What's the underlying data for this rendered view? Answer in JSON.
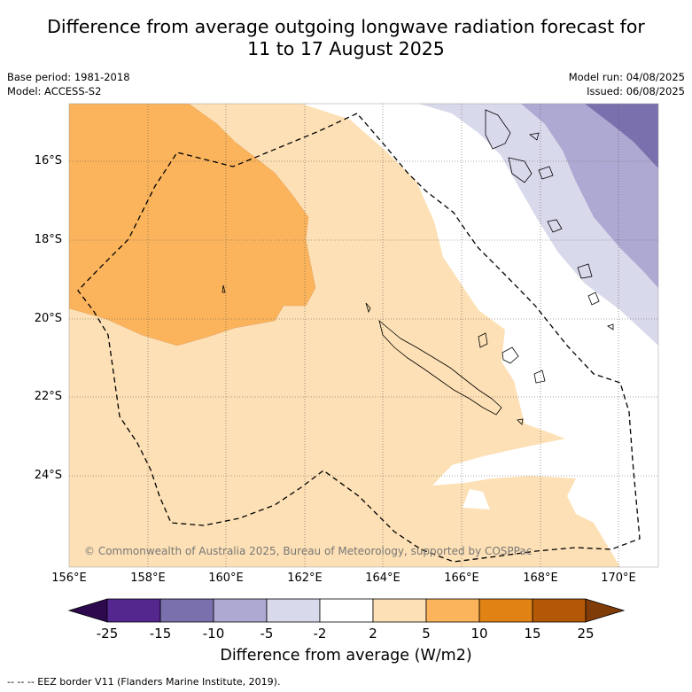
{
  "title_line1": "Difference from average outgoing longwave radiation forecast for",
  "title_line2": "11 to 17 August 2025",
  "base_period": "Base period: 1981-2018",
  "model": "Model: ACCESS-S2",
  "model_run": "Model run: 04/08/2025",
  "issued": "Issued: 06/08/2025",
  "copyright": "© Commonwealth of Australia 2025, Bureau of Meteorology, supported by COSPPac",
  "lat_labels": [
    "16°S",
    "18°S",
    "20°S",
    "22°S",
    "24°S"
  ],
  "lon_labels": [
    "156°E",
    "158°E",
    "160°E",
    "162°E",
    "164°E",
    "166°E",
    "168°E",
    "170°E"
  ],
  "colorbar": {
    "ticks": [
      "-25",
      "-15",
      "-10",
      "-5",
      "-2",
      "2",
      "5",
      "10",
      "15",
      "25"
    ],
    "colors": [
      "#2d0a4e",
      "#54278f",
      "#7b70ae",
      "#aea9d2",
      "#d9d9ec",
      "#ffffff",
      "#fde0b5",
      "#fbb45c",
      "#e08214",
      "#b35806",
      "#7f3b08"
    ],
    "label": "Difference from average (W/m2)"
  },
  "legend_text": "--  --  -- EEZ border V11 (Flanders Marine Institute, 2019)."
}
